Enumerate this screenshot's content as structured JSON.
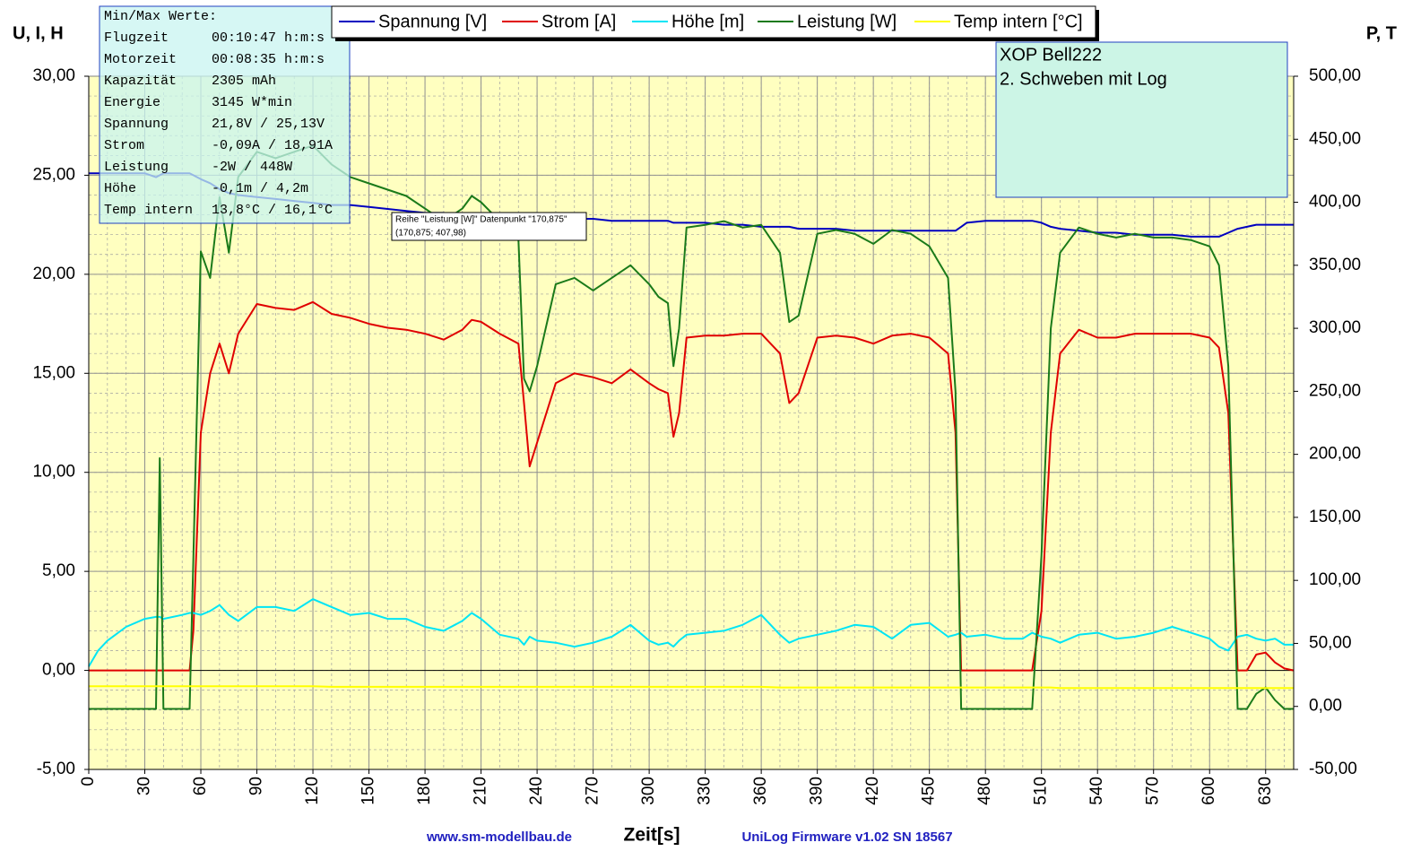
{
  "chart_data": {
    "type": "line",
    "y_label": "U, I, H",
    "y2_label": "P, T",
    "x_label": "Zeit[s]",
    "grid": true,
    "xlim": [
      0,
      645
    ],
    "ylim": [
      -5,
      30
    ],
    "y2lim": [
      -50,
      500
    ],
    "xticks": [
      0,
      30,
      60,
      90,
      120,
      150,
      180,
      210,
      240,
      270,
      300,
      330,
      360,
      390,
      420,
      450,
      480,
      510,
      540,
      570,
      600,
      630
    ],
    "yticks": [
      {
        "value": -5,
        "label": "-5,00"
      },
      {
        "value": 0,
        "label": "0,00"
      },
      {
        "value": 5,
        "label": "5,00"
      },
      {
        "value": 10,
        "label": "10,00"
      },
      {
        "value": 15,
        "label": "15,00"
      },
      {
        "value": 20,
        "label": "20,00"
      },
      {
        "value": 25,
        "label": "25,00"
      },
      {
        "value": 30,
        "label": "30,00"
      }
    ],
    "y2ticks": [
      {
        "value": -50,
        "label": "-50,00"
      },
      {
        "value": 0,
        "label": "0,00"
      },
      {
        "value": 50,
        "label": "50,00"
      },
      {
        "value": 100,
        "label": "100,00"
      },
      {
        "value": 150,
        "label": "150,00"
      },
      {
        "value": 200,
        "label": "200,00"
      },
      {
        "value": 250,
        "label": "250,00"
      },
      {
        "value": 300,
        "label": "300,00"
      },
      {
        "value": 350,
        "label": "350,00"
      },
      {
        "value": 400,
        "label": "400,00"
      },
      {
        "value": 450,
        "label": "450,00"
      },
      {
        "value": 500,
        "label": "500,00"
      }
    ],
    "x": [
      0,
      5,
      10,
      20,
      30,
      36,
      38,
      40,
      50,
      54,
      56,
      60,
      65,
      70,
      75,
      80,
      90,
      100,
      110,
      120,
      130,
      140,
      150,
      160,
      170,
      180,
      190,
      200,
      205,
      210,
      220,
      230,
      233,
      236,
      240,
      250,
      260,
      270,
      280,
      290,
      300,
      305,
      310,
      313,
      316,
      320,
      330,
      340,
      350,
      360,
      370,
      375,
      380,
      390,
      400,
      410,
      420,
      430,
      440,
      450,
      460,
      464,
      467,
      470,
      480,
      490,
      500,
      505,
      510,
      515,
      520,
      530,
      540,
      550,
      560,
      570,
      580,
      590,
      600,
      605,
      610,
      615,
      620,
      625,
      630,
      635,
      640,
      645
    ],
    "series": [
      {
        "name": "Spannung [V]",
        "color": "#0000c0",
        "values": [
          25.1,
          25.1,
          25.1,
          25.1,
          25.1,
          24.9,
          25.0,
          25.1,
          25.1,
          25.1,
          25.0,
          24.8,
          24.6,
          24.3,
          24.1,
          24.0,
          23.9,
          23.8,
          23.7,
          23.6,
          23.5,
          23.5,
          23.4,
          23.3,
          23.2,
          23.1,
          23.1,
          23.0,
          23.0,
          23.0,
          22.9,
          22.9,
          22.9,
          22.8,
          22.8,
          22.8,
          22.8,
          22.8,
          22.7,
          22.7,
          22.7,
          22.7,
          22.7,
          22.6,
          22.6,
          22.6,
          22.6,
          22.5,
          22.5,
          22.4,
          22.4,
          22.4,
          22.3,
          22.3,
          22.3,
          22.2,
          22.2,
          22.2,
          22.2,
          22.2,
          22.2,
          22.2,
          22.4,
          22.6,
          22.7,
          22.7,
          22.7,
          22.7,
          22.6,
          22.4,
          22.3,
          22.2,
          22.1,
          22.1,
          22.0,
          22.0,
          22.0,
          21.9,
          21.9,
          21.9,
          22.1,
          22.3,
          22.4,
          22.5,
          22.5,
          22.5,
          22.5,
          22.5
        ]
      },
      {
        "name": "Strom [A]",
        "color": "#e00000",
        "values": [
          0,
          0,
          0,
          0,
          0,
          0,
          0,
          0,
          0,
          0,
          2,
          12,
          15,
          16.5,
          15,
          17,
          18.5,
          18.3,
          18.2,
          18.6,
          18,
          17.8,
          17.5,
          17.3,
          17.2,
          17,
          16.7,
          17.2,
          17.7,
          17.6,
          17,
          16.5,
          13.5,
          10.3,
          11.5,
          14.5,
          15,
          14.8,
          14.5,
          15.2,
          14.5,
          14.2,
          14,
          11.8,
          13,
          16.8,
          16.9,
          16.9,
          17,
          17,
          16,
          13.5,
          14,
          16.8,
          16.9,
          16.8,
          16.5,
          16.9,
          17,
          16.8,
          16,
          12,
          0,
          0,
          0,
          0,
          0,
          0,
          3,
          12,
          16,
          17.2,
          16.8,
          16.8,
          17,
          17,
          17,
          17,
          16.8,
          16.3,
          13,
          0,
          0,
          0.8,
          0.9,
          0.4,
          0.1,
          0
        ]
      },
      {
        "name": "Höhe [m]",
        "color": "#00e5f5",
        "values": [
          0.2,
          1,
          1.5,
          2.2,
          2.6,
          2.7,
          2.7,
          2.6,
          2.8,
          2.9,
          2.9,
          2.8,
          3,
          3.3,
          2.8,
          2.5,
          3.2,
          3.2,
          3,
          3.6,
          3.2,
          2.8,
          2.9,
          2.6,
          2.6,
          2.2,
          2,
          2.5,
          2.9,
          2.6,
          1.8,
          1.6,
          1.3,
          1.7,
          1.5,
          1.4,
          1.2,
          1.4,
          1.7,
          2.3,
          1.5,
          1.3,
          1.4,
          1.2,
          1.5,
          1.8,
          1.9,
          2,
          2.3,
          2.8,
          1.8,
          1.4,
          1.6,
          1.8,
          2,
          2.3,
          2.2,
          1.6,
          2.3,
          2.4,
          1.7,
          1.8,
          1.9,
          1.7,
          1.8,
          1.6,
          1.6,
          1.9,
          1.7,
          1.6,
          1.4,
          1.8,
          1.9,
          1.6,
          1.7,
          1.9,
          2.2,
          1.9,
          1.6,
          1.2,
          1,
          1.7,
          1.8,
          1.6,
          1.5,
          1.6,
          1.3,
          1.3
        ]
      },
      {
        "name": "Leistung [W]",
        "color": "#1a7a1a",
        "axis": "y2",
        "values": [
          -2,
          -2,
          -2,
          -2,
          -2,
          -2,
          197,
          -2,
          -2,
          -2,
          118,
          361,
          340,
          404,
          360,
          420,
          440,
          435,
          440,
          445,
          430,
          420,
          415,
          410,
          405,
          395,
          385,
          395,
          405,
          400,
          385,
          370,
          260,
          250,
          270,
          335,
          340,
          330,
          340,
          350,
          335,
          325,
          320,
          270,
          300,
          380,
          382,
          385,
          380,
          382,
          360,
          305,
          310,
          375,
          378,
          375,
          367,
          378,
          375,
          365,
          340,
          250,
          -2,
          -2,
          -2,
          -2,
          -2,
          -2,
          120,
          300,
          360,
          380,
          375,
          372,
          375,
          372,
          372,
          370,
          365,
          350,
          270,
          -2,
          -2,
          10,
          15,
          5,
          -2,
          -2
        ]
      },
      {
        "name": "Temp intern [°C]",
        "color": "#ffff00",
        "axis": "y2",
        "values": [
          16,
          16,
          16,
          16,
          16,
          16,
          16,
          16,
          16,
          16,
          16,
          16,
          16,
          16,
          16,
          16,
          16,
          16,
          16,
          16,
          15.5,
          15.5,
          15.5,
          15.5,
          15.5,
          15.5,
          15.5,
          15.5,
          15.5,
          15.5,
          15.5,
          15.5,
          15.5,
          15.5,
          15.5,
          15.5,
          15.5,
          15.5,
          15.5,
          15.5,
          15.5,
          15.5,
          15.5,
          15.5,
          15.5,
          15.5,
          15.5,
          15.5,
          15.5,
          15.5,
          15,
          15,
          15,
          15,
          15,
          15,
          15,
          15,
          15,
          15,
          15,
          15,
          15,
          15,
          15,
          15,
          15,
          15,
          15,
          15,
          14.5,
          14.5,
          14.5,
          14.5,
          14.5,
          14.5,
          14.5,
          14.5,
          14.5,
          14.5,
          14.5,
          14.5,
          14.5,
          14.5,
          14.5,
          14.5,
          14.5,
          14.5
        ]
      }
    ]
  },
  "info_box": {
    "title": "Min/Max Werte:",
    "rows": [
      [
        "Flugzeit",
        "00:10:47 h:m:s"
      ],
      [
        "Motorzeit",
        "00:08:35 h:m:s"
      ],
      [
        "Kapazität",
        "2305 mAh"
      ],
      [
        "Energie",
        "3145 W*min"
      ],
      [
        "Spannung",
        "21,8V / 25,13V"
      ],
      [
        "Strom",
        "-0,09A / 18,91A"
      ],
      [
        "Leistung",
        "-2W / 448W"
      ],
      [
        "Höhe",
        "-0,1m / 4,2m"
      ],
      [
        "Temp intern",
        "13,8°C / 16,1°C"
      ]
    ]
  },
  "annotation": {
    "lines": [
      "XOP Bell222",
      "2. Schweben mit Log"
    ]
  },
  "tooltip": {
    "lines": [
      "Reihe \"Leistung [W]\" Datenpunkt \"170,875\"",
      "(170,875; 407,98)"
    ]
  },
  "footer": {
    "left": "www.sm-modellbau.de",
    "right": "UniLog Firmware v1.02 SN 18567"
  }
}
